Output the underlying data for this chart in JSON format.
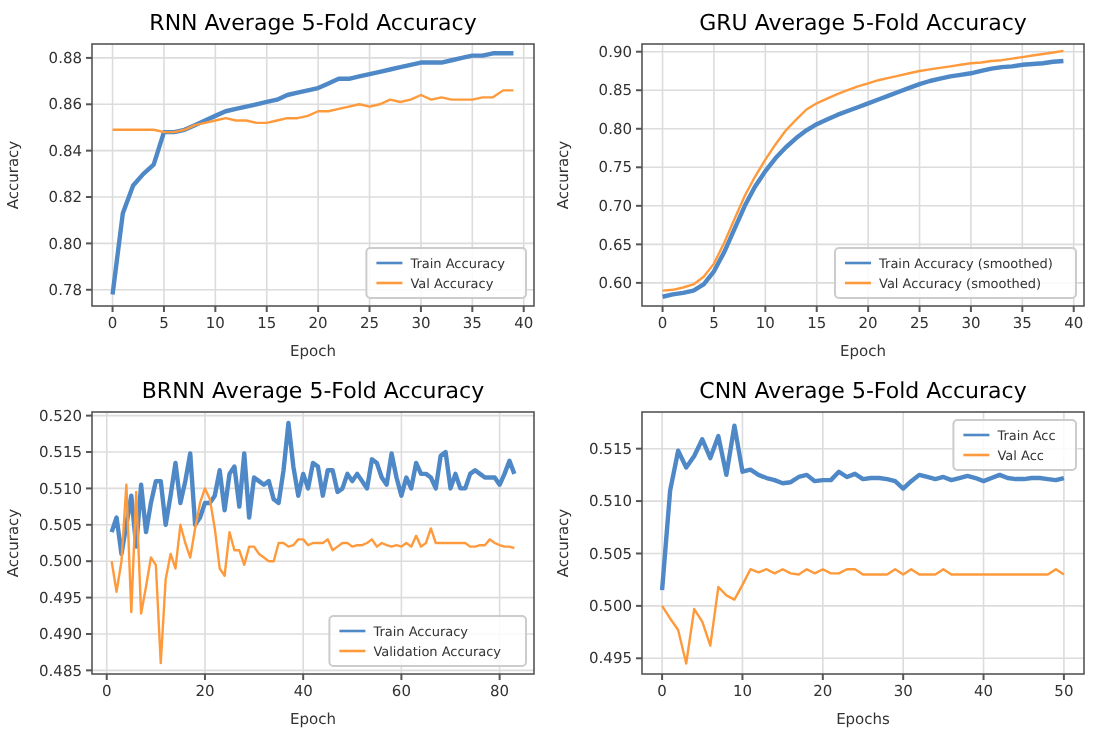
{
  "chart_data": [
    {
      "type": "line",
      "title": "RNN Average 5-Fold Accuracy",
      "xlabel": "Epoch",
      "ylabel": "Accuracy",
      "xlim": [
        -2,
        41
      ],
      "ylim": [
        0.773,
        0.886
      ],
      "xticks": [
        0,
        5,
        10,
        15,
        20,
        25,
        30,
        35,
        40
      ],
      "yticks": [
        {
          "value": 0.78,
          "label": "0.78"
        },
        {
          "value": 0.8,
          "label": "0.80"
        },
        {
          "value": 0.82,
          "label": "0.82"
        },
        {
          "value": 0.84,
          "label": "0.84"
        },
        {
          "value": 0.86,
          "label": "0.86"
        },
        {
          "value": 0.88,
          "label": "0.88"
        }
      ],
      "grid": true,
      "legend": "bottom right",
      "x": [
        0,
        1,
        2,
        3,
        4,
        5,
        6,
        7,
        8,
        9,
        10,
        11,
        12,
        13,
        14,
        15,
        16,
        17,
        18,
        19,
        20,
        21,
        22,
        23,
        24,
        25,
        26,
        27,
        28,
        29,
        30,
        31,
        32,
        33,
        34,
        35,
        36,
        37,
        38,
        39
      ],
      "series": [
        {
          "name": "Train Accuracy",
          "color": "#4f88c6",
          "values": [
            0.778,
            0.813,
            0.825,
            0.83,
            0.834,
            0.848,
            0.848,
            0.849,
            0.851,
            0.853,
            0.855,
            0.857,
            0.858,
            0.859,
            0.86,
            0.861,
            0.862,
            0.864,
            0.865,
            0.866,
            0.867,
            0.869,
            0.871,
            0.871,
            0.872,
            0.873,
            0.874,
            0.875,
            0.876,
            0.877,
            0.878,
            0.878,
            0.878,
            0.879,
            0.88,
            0.881,
            0.881,
            0.882,
            0.882,
            0.882
          ]
        },
        {
          "name": "Val Accuracy",
          "color": "#ff9a3c",
          "values": [
            0.849,
            0.849,
            0.849,
            0.849,
            0.849,
            0.848,
            0.848,
            0.849,
            0.851,
            0.852,
            0.853,
            0.854,
            0.853,
            0.853,
            0.852,
            0.852,
            0.853,
            0.854,
            0.854,
            0.855,
            0.857,
            0.857,
            0.858,
            0.859,
            0.86,
            0.859,
            0.86,
            0.862,
            0.861,
            0.862,
            0.864,
            0.862,
            0.863,
            0.862,
            0.862,
            0.862,
            0.863,
            0.863,
            0.866,
            0.866
          ]
        }
      ]
    },
    {
      "type": "line",
      "title": "GRU Average 5-Fold Accuracy",
      "xlabel": "Epoch",
      "ylabel": "Accuracy",
      "xlim": [
        -2,
        41
      ],
      "ylim": [
        0.57,
        0.91
      ],
      "xticks": [
        0,
        5,
        10,
        15,
        20,
        25,
        30,
        35,
        40
      ],
      "yticks": [
        {
          "value": 0.6,
          "label": "0.60"
        },
        {
          "value": 0.65,
          "label": "0.65"
        },
        {
          "value": 0.7,
          "label": "0.70"
        },
        {
          "value": 0.75,
          "label": "0.75"
        },
        {
          "value": 0.8,
          "label": "0.80"
        },
        {
          "value": 0.85,
          "label": "0.85"
        },
        {
          "value": 0.9,
          "label": "0.90"
        }
      ],
      "grid": true,
      "legend": "bottom right",
      "x": [
        0,
        1,
        2,
        3,
        4,
        5,
        6,
        7,
        8,
        9,
        10,
        11,
        12,
        13,
        14,
        15,
        16,
        17,
        18,
        19,
        20,
        21,
        22,
        23,
        24,
        25,
        26,
        27,
        28,
        29,
        30,
        31,
        32,
        33,
        34,
        35,
        36,
        37,
        38,
        39
      ],
      "series": [
        {
          "name": "Train Accuracy (smoothed)",
          "color": "#4f88c6",
          "values": [
            0.582,
            0.585,
            0.587,
            0.59,
            0.598,
            0.615,
            0.64,
            0.67,
            0.7,
            0.725,
            0.745,
            0.762,
            0.776,
            0.788,
            0.798,
            0.806,
            0.812,
            0.818,
            0.823,
            0.828,
            0.833,
            0.838,
            0.843,
            0.848,
            0.853,
            0.858,
            0.862,
            0.865,
            0.868,
            0.87,
            0.872,
            0.875,
            0.878,
            0.88,
            0.881,
            0.883,
            0.884,
            0.885,
            0.887,
            0.888
          ]
        },
        {
          "name": "Val Accuracy (smoothed)",
          "color": "#ff9a3c",
          "values": [
            0.59,
            0.591,
            0.594,
            0.598,
            0.608,
            0.625,
            0.652,
            0.683,
            0.713,
            0.738,
            0.76,
            0.78,
            0.798,
            0.812,
            0.825,
            0.833,
            0.839,
            0.845,
            0.85,
            0.855,
            0.859,
            0.863,
            0.866,
            0.869,
            0.872,
            0.875,
            0.877,
            0.879,
            0.881,
            0.883,
            0.885,
            0.886,
            0.888,
            0.889,
            0.891,
            0.893,
            0.895,
            0.897,
            0.899,
            0.901
          ]
        }
      ]
    },
    {
      "type": "line",
      "title": "BRNN Average 5-Fold Accuracy",
      "xlabel": "Epoch",
      "ylabel": "Accuracy",
      "xlim": [
        -3,
        87
      ],
      "ylim": [
        0.4845,
        0.5205
      ],
      "xticks": [
        0,
        20,
        40,
        60,
        80
      ],
      "yticks": [
        {
          "value": 0.485,
          "label": "0.485"
        },
        {
          "value": 0.49,
          "label": "0.490"
        },
        {
          "value": 0.495,
          "label": "0.495"
        },
        {
          "value": 0.5,
          "label": "0.500"
        },
        {
          "value": 0.505,
          "label": "0.505"
        },
        {
          "value": 0.51,
          "label": "0.510"
        },
        {
          "value": 0.515,
          "label": "0.515"
        },
        {
          "value": 0.52,
          "label": "0.520"
        }
      ],
      "grid": true,
      "legend": "bottom right",
      "x": [
        1,
        2,
        3,
        4,
        5,
        6,
        7,
        8,
        9,
        10,
        11,
        12,
        13,
        14,
        15,
        16,
        17,
        18,
        19,
        20,
        21,
        22,
        23,
        24,
        25,
        26,
        27,
        28,
        29,
        30,
        31,
        32,
        33,
        34,
        35,
        36,
        37,
        38,
        39,
        40,
        41,
        42,
        43,
        44,
        45,
        46,
        47,
        48,
        49,
        50,
        51,
        52,
        53,
        54,
        55,
        56,
        57,
        58,
        59,
        60,
        61,
        62,
        63,
        64,
        65,
        66,
        67,
        68,
        69,
        70,
        71,
        72,
        73,
        74,
        75,
        76,
        77,
        78,
        79,
        80,
        81,
        82,
        83
      ],
      "series": [
        {
          "name": "Train Accuracy",
          "color": "#4f88c6",
          "values": [
            0.504,
            0.506,
            0.501,
            0.505,
            0.509,
            0.502,
            0.5105,
            0.504,
            0.508,
            0.511,
            0.511,
            0.505,
            0.509,
            0.5135,
            0.508,
            0.511,
            0.5148,
            0.505,
            0.506,
            0.508,
            0.508,
            0.509,
            0.5125,
            0.507,
            0.512,
            0.513,
            0.5075,
            0.5148,
            0.506,
            0.5115,
            0.511,
            0.5105,
            0.511,
            0.5085,
            0.508,
            0.5125,
            0.519,
            0.513,
            0.509,
            0.512,
            0.51,
            0.5135,
            0.513,
            0.509,
            0.5125,
            0.5125,
            0.5095,
            0.51,
            0.512,
            0.511,
            0.512,
            0.511,
            0.51,
            0.514,
            0.5135,
            0.5115,
            0.5105,
            0.5148,
            0.5115,
            0.509,
            0.5115,
            0.51,
            0.5135,
            0.512,
            0.512,
            0.5115,
            0.51,
            0.5145,
            0.515,
            0.51,
            0.512,
            0.51,
            0.51,
            0.512,
            0.5125,
            0.512,
            0.5115,
            0.5115,
            0.5115,
            0.5105,
            0.512,
            0.5138,
            0.512
          ]
        },
        {
          "name": "Validation Accuracy",
          "color": "#ff9a3c",
          "values": [
            0.5,
            0.4958,
            0.5,
            0.5105,
            0.493,
            0.5095,
            0.4928,
            0.4965,
            0.5005,
            0.4995,
            0.486,
            0.4975,
            0.501,
            0.499,
            0.505,
            0.5025,
            0.5005,
            0.5045,
            0.508,
            0.51,
            0.5085,
            0.5045,
            0.499,
            0.498,
            0.504,
            0.5015,
            0.5015,
            0.4995,
            0.502,
            0.502,
            0.501,
            0.5005,
            0.5,
            0.5,
            0.5025,
            0.5025,
            0.502,
            0.5022,
            0.503,
            0.503,
            0.5022,
            0.5025,
            0.5025,
            0.5025,
            0.503,
            0.5015,
            0.502,
            0.5025,
            0.5025,
            0.502,
            0.5022,
            0.5022,
            0.5025,
            0.503,
            0.502,
            0.5025,
            0.5022,
            0.502,
            0.5022,
            0.502,
            0.5025,
            0.502,
            0.5035,
            0.502,
            0.5025,
            0.5045,
            0.5025,
            0.5025,
            0.5025,
            0.5025,
            0.5025,
            0.5025,
            0.5025,
            0.502,
            0.502,
            0.5022,
            0.5022,
            0.503,
            0.5025,
            0.5022,
            0.502,
            0.502,
            0.5018
          ]
        }
      ]
    },
    {
      "type": "line",
      "title": "CNN Average 5-Fold Accuracy",
      "xlabel": "Epochs",
      "ylabel": "Accuracy",
      "xlim": [
        -2.5,
        52.5
      ],
      "ylim": [
        0.4935,
        0.5185
      ],
      "xticks": [
        0,
        10,
        20,
        30,
        40,
        50
      ],
      "yticks": [
        0.495,
        {
          "value": 0.5,
          "label": "0.500"
        },
        0.505,
        {
          "value": 0.51,
          "label": "0.510"
        },
        0.515
      ],
      "grid": true,
      "legend": "top right",
      "x": [
        0,
        1,
        2,
        3,
        4,
        5,
        6,
        7,
        8,
        9,
        10,
        11,
        12,
        13,
        14,
        15,
        16,
        17,
        18,
        19,
        20,
        21,
        22,
        23,
        24,
        25,
        26,
        27,
        28,
        29,
        30,
        31,
        32,
        33,
        34,
        35,
        36,
        37,
        38,
        39,
        40,
        41,
        42,
        43,
        44,
        45,
        46,
        47,
        48,
        49,
        50
      ],
      "series": [
        {
          "name": "Train Acc",
          "color": "#4f88c6",
          "values": [
            0.5015,
            0.511,
            0.5148,
            0.5132,
            0.5143,
            0.5159,
            0.5141,
            0.5162,
            0.5125,
            0.5172,
            0.5128,
            0.513,
            0.5125,
            0.5122,
            0.512,
            0.5117,
            0.5118,
            0.5123,
            0.5125,
            0.5119,
            0.512,
            0.512,
            0.5128,
            0.5123,
            0.5126,
            0.5121,
            0.5122,
            0.5122,
            0.5121,
            0.5119,
            0.5112,
            0.5119,
            0.5125,
            0.5123,
            0.5121,
            0.5123,
            0.512,
            0.5122,
            0.5124,
            0.5122,
            0.5119,
            0.5122,
            0.5125,
            0.5122,
            0.5121,
            0.5121,
            0.5122,
            0.5122,
            0.5121,
            0.512,
            0.5122
          ]
        },
        {
          "name": "Val Acc",
          "color": "#ff9a3c",
          "values": [
            0.5,
            0.4988,
            0.4977,
            0.4945,
            0.4997,
            0.4985,
            0.4962,
            0.5018,
            0.501,
            0.5006,
            0.502,
            0.5035,
            0.5032,
            0.5035,
            0.5031,
            0.5035,
            0.5031,
            0.503,
            0.5035,
            0.5031,
            0.5035,
            0.5031,
            0.5031,
            0.5035,
            0.5035,
            0.503,
            0.503,
            0.503,
            0.503,
            0.5035,
            0.503,
            0.5035,
            0.503,
            0.503,
            0.503,
            0.5035,
            0.503,
            0.503,
            0.503,
            0.503,
            0.503,
            0.503,
            0.503,
            0.503,
            0.503,
            0.503,
            0.503,
            0.503,
            0.503,
            0.5035,
            0.503
          ]
        }
      ]
    }
  ]
}
